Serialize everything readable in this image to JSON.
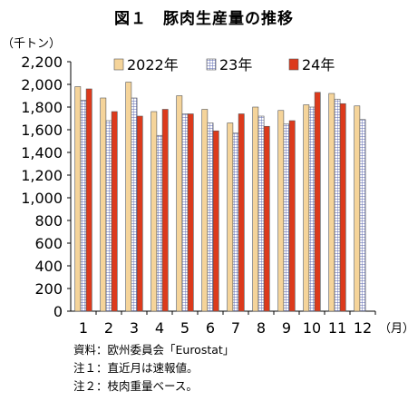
{
  "chart_data": {
    "type": "bar",
    "title": "図１　豚肉生産量の推移",
    "ylabel": "（千トン）",
    "xlabel": "（月）",
    "categories": [
      "1",
      "2",
      "3",
      "4",
      "5",
      "6",
      "7",
      "8",
      "9",
      "10",
      "11",
      "12"
    ],
    "ylim": [
      0,
      2200
    ],
    "yticks": [
      "2,200",
      "2,000",
      "1,800",
      "1,600",
      "1,400",
      "1,200",
      "1,000",
      "800",
      "600",
      "400",
      "200",
      "0"
    ],
    "legend_position": "top",
    "grid": false,
    "series": [
      {
        "name": "2022年",
        "color": "#f5d49a",
        "pattern": "solid",
        "values": [
          1980,
          1880,
          2020,
          1760,
          1900,
          1780,
          1660,
          1800,
          1770,
          1820,
          1920,
          1810
        ]
      },
      {
        "name": "23年",
        "color": "#c5cde6",
        "pattern": "grid",
        "values": [
          1860,
          1680,
          1880,
          1550,
          1740,
          1660,
          1570,
          1720,
          1650,
          1800,
          1870,
          1690
        ]
      },
      {
        "name": "24年",
        "color": "#dc3a1c",
        "pattern": "solid",
        "values": [
          1960,
          1760,
          1720,
          1780,
          1740,
          1590,
          1740,
          1630,
          1680,
          1930,
          1830,
          null
        ]
      }
    ]
  },
  "notes": [
    "資料：欧州委員会「Eurostat」",
    "注１：直近月は速報値。",
    "注２：枝肉重量ベース。"
  ]
}
